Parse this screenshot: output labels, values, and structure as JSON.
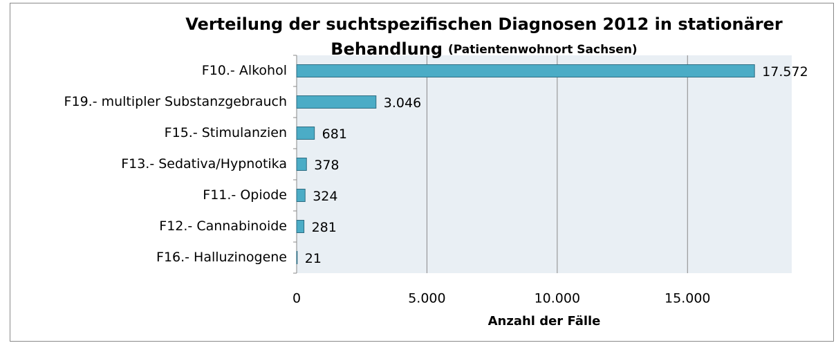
{
  "chart_data": {
    "type": "barh",
    "title": [
      "Verteilung der suchtspezifischen Diagnosen 2012 in stationärer",
      "Behandlung"
    ],
    "subtitle": "(Patientenwohnort Sachsen)",
    "xlabel": "Anzahl der Fälle",
    "categories": [
      "F10.- Alkohol",
      "F19.- multipler Substanzgebrauch",
      "F15.- Stimulanzien",
      "F13.- Sedativa/Hypnotika",
      "F11.- Opiode",
      "F12.- Cannabinoide",
      "F16.- Halluzinogene"
    ],
    "values": [
      17572,
      3046,
      681,
      378,
      324,
      281,
      21
    ],
    "value_labels": [
      "17.572",
      "3.046",
      "681",
      "378",
      "324",
      "281",
      "21"
    ],
    "color": "#4bacc6",
    "xlim": [
      0,
      19000
    ],
    "xticks": [
      0,
      {
        "value": 5000,
        "label": "5.000"
      },
      {
        "value": 10000,
        "label": "10.000"
      },
      {
        "value": 15000,
        "label": "15.000"
      }
    ],
    "grid": true
  }
}
